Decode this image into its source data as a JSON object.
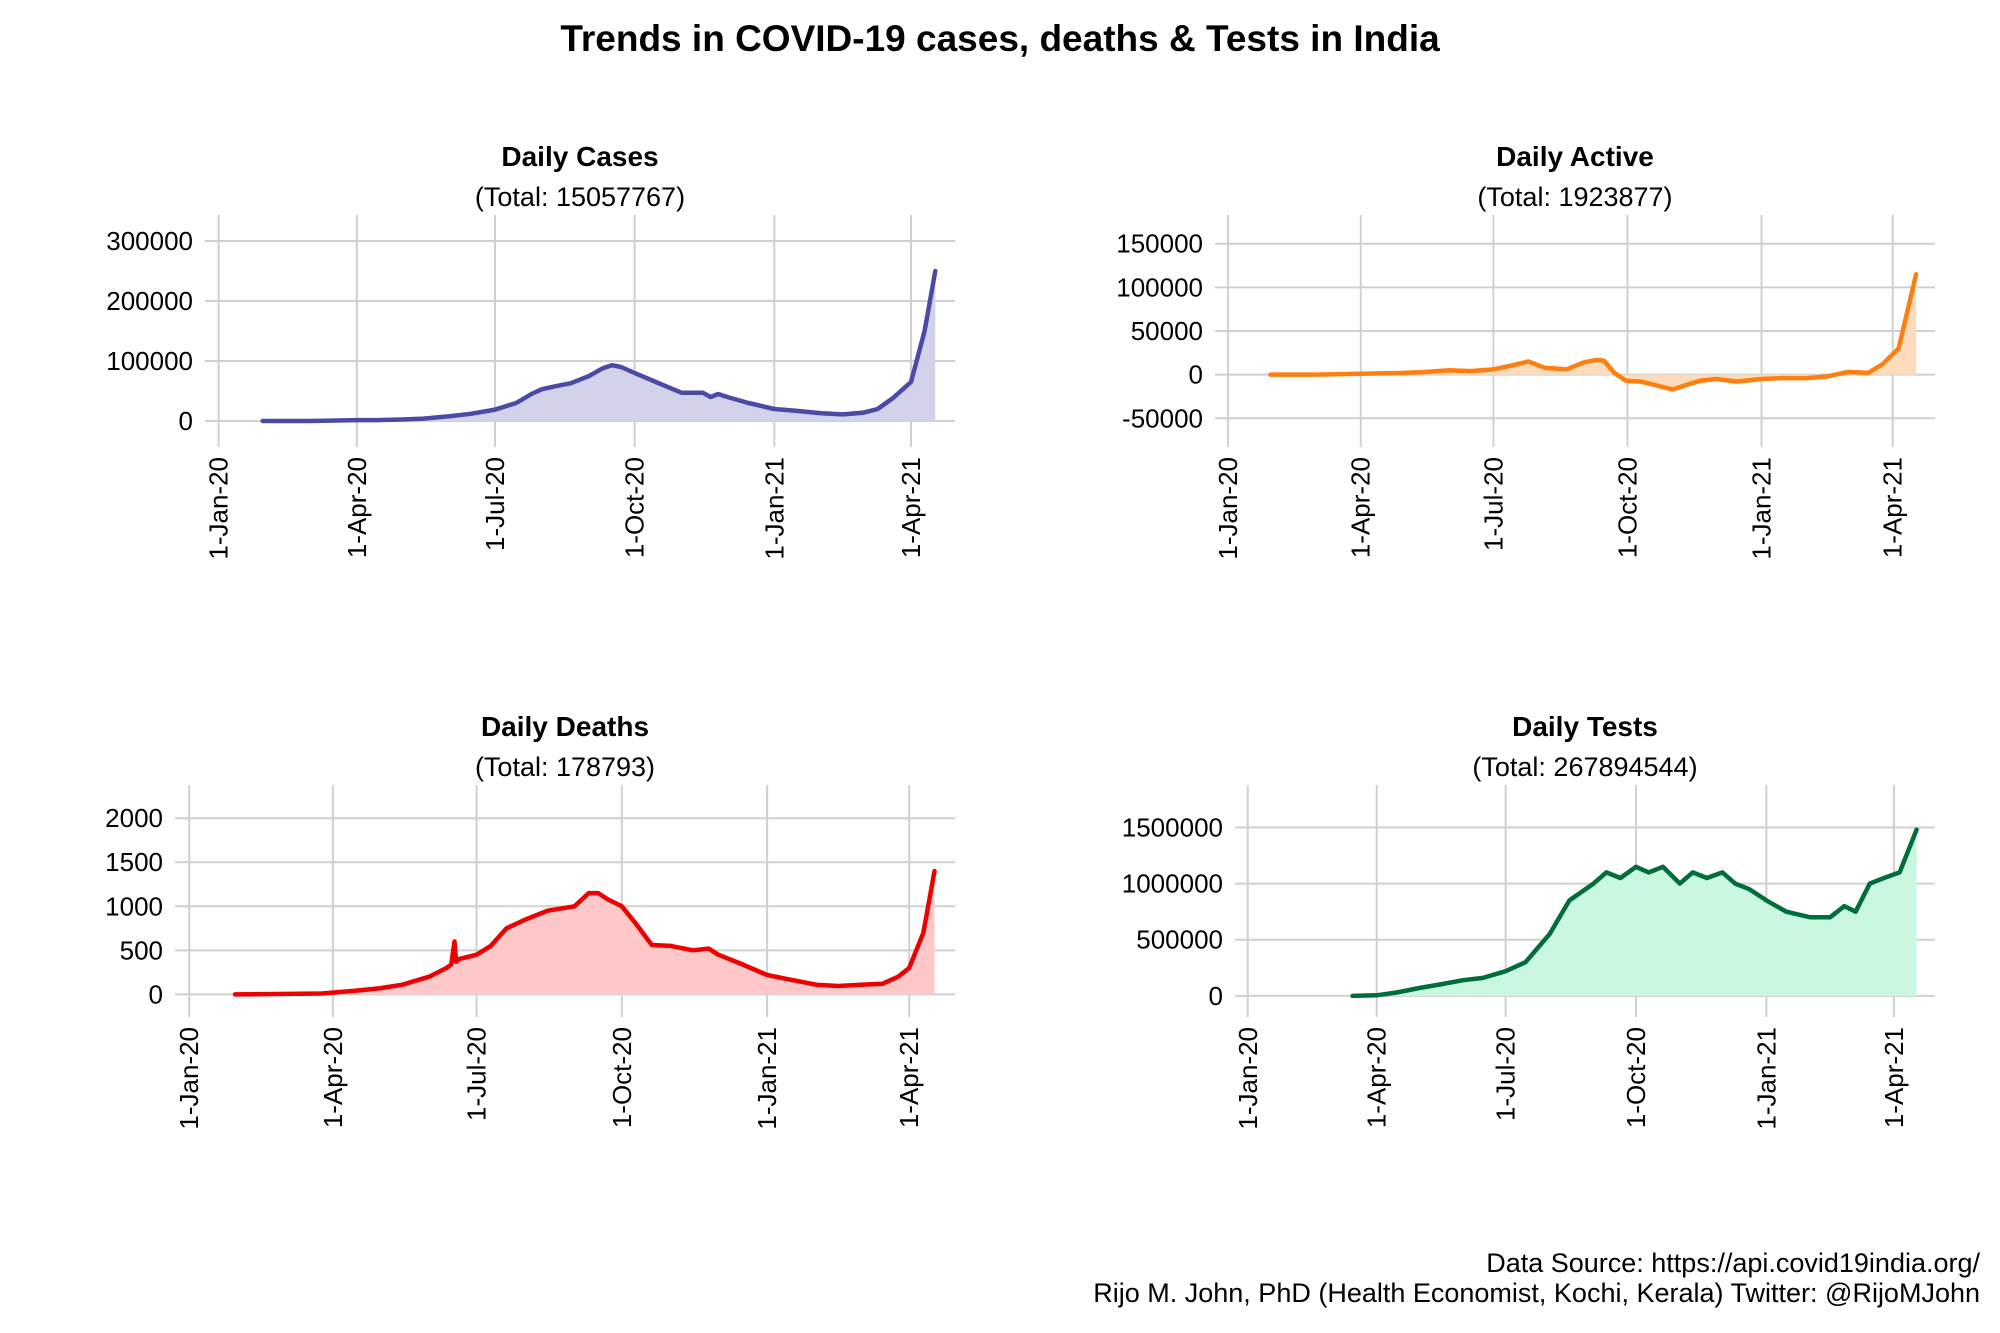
{
  "title": "Trends in COVID-19 cases, deaths & Tests in India",
  "footer": {
    "source": "Data Source: https://api.covid19india.org/",
    "credit": "Rijo M. John, PhD (Health Economist, Kochi, Kerala) Twitter: @RijoMJohn"
  },
  "chart_data": [
    {
      "type": "area",
      "title": "Daily Cases",
      "subtitle": "(Total: 15057767)",
      "color": "#4b4ba6",
      "fill": "#d2d2eb",
      "ylim": [
        -10000,
        310000
      ],
      "yticks": [
        0,
        100000,
        200000,
        300000
      ],
      "xlim": [
        "2019-12-23",
        "2021-04-30"
      ],
      "xticks": [
        "2020-01-01",
        "2020-04-01",
        "2020-07-01",
        "2020-10-01",
        "2021-01-01",
        "2021-04-01"
      ],
      "xticklabels": [
        "1-Jan-20",
        "1-Apr-20",
        "1-Jul-20",
        "1-Oct-20",
        "1-Jan-21",
        "1-Apr-21"
      ],
      "grid": true,
      "series": [
        {
          "x": [
            "2020-01-30",
            "2020-03-01",
            "2020-04-01",
            "2020-04-15",
            "2020-05-01",
            "2020-05-15",
            "2020-06-01",
            "2020-06-15",
            "2020-07-01",
            "2020-07-15",
            "2020-07-25",
            "2020-08-01",
            "2020-08-10",
            "2020-08-20",
            "2020-09-01",
            "2020-09-10",
            "2020-09-16",
            "2020-09-22",
            "2020-10-01",
            "2020-10-15",
            "2020-11-01",
            "2020-11-15",
            "2020-11-20",
            "2020-11-25",
            "2020-12-01",
            "2020-12-15",
            "2021-01-01",
            "2021-01-15",
            "2021-02-01",
            "2021-02-15",
            "2021-03-01",
            "2021-03-10",
            "2021-03-20",
            "2021-04-01",
            "2021-04-10",
            "2021-04-17"
          ],
          "y": [
            0,
            50,
            1500,
            1500,
            2500,
            4000,
            8000,
            12000,
            19000,
            30000,
            45000,
            53000,
            58000,
            63000,
            75000,
            88000,
            93000,
            90000,
            80000,
            65000,
            47000,
            47000,
            40000,
            45000,
            40000,
            30000,
            20000,
            17000,
            13000,
            11000,
            14000,
            20000,
            38000,
            65000,
            150000,
            250000
          ]
        }
      ]
    },
    {
      "type": "area",
      "title": "Daily Active",
      "subtitle": "(Total: 1923877)",
      "color": "#ff7f0e",
      "fill": "#fddcbd",
      "ylim": [
        -60000,
        160000
      ],
      "yticks": [
        -50000,
        0,
        50000,
        100000,
        150000
      ],
      "xlim": [
        "2019-12-23",
        "2021-04-30"
      ],
      "xticks": [
        "2020-01-01",
        "2020-04-01",
        "2020-07-01",
        "2020-10-01",
        "2021-01-01",
        "2021-04-01"
      ],
      "xticklabels": [
        "1-Jan-20",
        "1-Apr-20",
        "1-Jul-20",
        "1-Oct-20",
        "1-Jan-21",
        "1-Apr-21"
      ],
      "grid": true,
      "series": [
        {
          "x": [
            "2020-01-30",
            "2020-03-01",
            "2020-04-01",
            "2020-05-01",
            "2020-05-15",
            "2020-06-01",
            "2020-06-15",
            "2020-07-01",
            "2020-07-15",
            "2020-07-25",
            "2020-08-05",
            "2020-08-20",
            "2020-09-01",
            "2020-09-10",
            "2020-09-15",
            "2020-09-22",
            "2020-09-30",
            "2020-10-10",
            "2020-10-20",
            "2020-11-01",
            "2020-11-10",
            "2020-11-20",
            "2020-12-01",
            "2020-12-15",
            "2021-01-01",
            "2021-01-15",
            "2021-02-01",
            "2021-02-15",
            "2021-03-01",
            "2021-03-15",
            "2021-03-25",
            "2021-04-05",
            "2021-04-17"
          ],
          "y": [
            0,
            0,
            1000,
            2000,
            3000,
            5000,
            4000,
            6000,
            11000,
            15000,
            8000,
            6000,
            14000,
            17000,
            16000,
            2000,
            -7000,
            -8000,
            -12000,
            -17000,
            -12000,
            -7000,
            -5000,
            -8000,
            -5000,
            -4000,
            -4000,
            -2000,
            3000,
            2000,
            12000,
            30000,
            115000
          ]
        }
      ]
    },
    {
      "type": "area",
      "title": "Daily Deaths",
      "subtitle": "(Total: 178793)",
      "color": "#ee0000",
      "fill": "#ffc8c8",
      "ylim": [
        -30,
        2150
      ],
      "yticks": [
        0,
        500,
        1000,
        1500,
        2000
      ],
      "xlim": [
        "2019-12-23",
        "2021-04-30"
      ],
      "xticks": [
        "2020-01-01",
        "2020-04-01",
        "2020-07-01",
        "2020-10-01",
        "2021-01-01",
        "2021-04-01"
      ],
      "xticklabels": [
        "1-Jan-20",
        "1-Apr-20",
        "1-Jul-20",
        "1-Oct-20",
        "1-Jan-21",
        "1-Apr-21"
      ],
      "grid": true,
      "series": [
        {
          "x": [
            "2020-01-30",
            "2020-03-25",
            "2020-04-15",
            "2020-05-01",
            "2020-05-15",
            "2020-06-01",
            "2020-06-12",
            "2020-06-15",
            "2020-06-17",
            "2020-06-18",
            "2020-06-20",
            "2020-07-01",
            "2020-07-10",
            "2020-07-20",
            "2020-08-01",
            "2020-08-15",
            "2020-09-01",
            "2020-09-10",
            "2020-09-16",
            "2020-09-22",
            "2020-10-01",
            "2020-10-10",
            "2020-10-20",
            "2020-11-01",
            "2020-11-15",
            "2020-11-25",
            "2020-12-01",
            "2020-12-15",
            "2021-01-01",
            "2021-01-15",
            "2021-02-01",
            "2021-02-15",
            "2021-03-01",
            "2021-03-15",
            "2021-03-25",
            "2021-04-01",
            "2021-04-10",
            "2021-04-17"
          ],
          "y": [
            0,
            10,
            40,
            70,
            110,
            200,
            300,
            340,
            600,
            370,
            400,
            450,
            550,
            750,
            850,
            950,
            1000,
            1150,
            1150,
            1080,
            1000,
            800,
            560,
            550,
            500,
            520,
            450,
            350,
            220,
            170,
            110,
            95,
            110,
            120,
            200,
            300,
            700,
            1400
          ]
        }
      ]
    },
    {
      "type": "area",
      "title": "Daily Tests",
      "subtitle": "(Total: 267894544)",
      "color": "#006d3a",
      "fill": "#c9f7e0",
      "ylim": [
        -10000,
        1700000
      ],
      "yticks": [
        0,
        500000,
        1000000,
        1500000
      ],
      "xlim": [
        "2019-12-23",
        "2021-04-30"
      ],
      "xticks": [
        "2020-01-01",
        "2020-04-01",
        "2020-07-01",
        "2020-10-01",
        "2021-01-01",
        "2021-04-01"
      ],
      "xticklabels": [
        "1-Jan-20",
        "1-Apr-20",
        "1-Jul-20",
        "1-Oct-20",
        "1-Jan-21",
        "1-Apr-21"
      ],
      "grid": true,
      "series": [
        {
          "x": [
            "2020-03-15",
            "2020-04-01",
            "2020-04-15",
            "2020-05-01",
            "2020-05-15",
            "2020-06-01",
            "2020-06-15",
            "2020-07-01",
            "2020-07-15",
            "2020-08-01",
            "2020-08-15",
            "2020-09-01",
            "2020-09-10",
            "2020-09-20",
            "2020-10-01",
            "2020-10-10",
            "2020-10-20",
            "2020-11-01",
            "2020-11-10",
            "2020-11-20",
            "2020-12-01",
            "2020-12-10",
            "2020-12-20",
            "2021-01-01",
            "2021-01-15",
            "2021-02-01",
            "2021-02-15",
            "2021-02-25",
            "2021-03-05",
            "2021-03-15",
            "2021-03-25",
            "2021-04-05",
            "2021-04-17"
          ],
          "y": [
            0,
            5000,
            30000,
            70000,
            100000,
            140000,
            160000,
            220000,
            300000,
            550000,
            850000,
            1000000,
            1100000,
            1050000,
            1150000,
            1100000,
            1150000,
            1000000,
            1100000,
            1050000,
            1100000,
            1000000,
            950000,
            850000,
            750000,
            700000,
            700000,
            800000,
            750000,
            1000000,
            1050000,
            1100000,
            1480000
          ]
        }
      ]
    }
  ]
}
